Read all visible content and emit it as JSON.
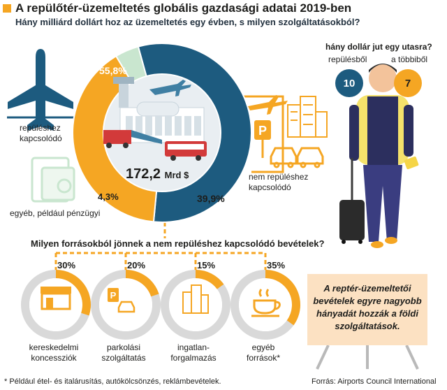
{
  "title": "A repülőtér-üzemeltetés globális gazdasági adatai 2019-ben",
  "subtitle": "Hány milliárd dollárt hoz az üzemeltetés egy évben, s milyen szolgáltatásokból?",
  "chart_data": [
    {
      "type": "pie",
      "title": "Hány milliárd dollárt hoz az üzemeltetés egy évben, s milyen szolgáltatásokból?",
      "center_value": "172,2",
      "center_unit": "Mrd $",
      "slices": [
        {
          "label": "repüléshez kapcsolódó",
          "value": 55.8,
          "value_label": "55,8%",
          "color": "#1d5b7f"
        },
        {
          "label": "nem repüléshez kapcsolódó",
          "value": 39.9,
          "value_label": "39,9%",
          "color": "#f5a623"
        },
        {
          "label": "egyéb, például pénzügyi",
          "value": 4.3,
          "value_label": "4,3%",
          "color": "#c9e6cf"
        }
      ]
    },
    {
      "type": "pie",
      "title": "Milyen forrásokból jönnek a nem repüléshez kapcsolódó bevételek?",
      "slices": [
        {
          "label": "kereskedelmi koncessziók",
          "value": 30,
          "value_label": "30%"
        },
        {
          "label": "parkolási szolgáltatás",
          "value": 20,
          "value_label": "20%"
        },
        {
          "label": "ingatlan-forgalmazás",
          "value": 15,
          "value_label": "15%"
        },
        {
          "label": "egyéb források*",
          "value": 35,
          "value_label": "35%"
        }
      ]
    }
  ],
  "labels": {
    "aviation_line1": "repüléshez",
    "aviation_line2": "kapcsolódó",
    "non_aviation_line1": "nem repüléshez",
    "non_aviation_line2": "kapcsolódó",
    "other": "egyéb, például pénzügyi"
  },
  "question2": "Milyen forrásokból jönnek a nem    repüléshez kapcsolódó bevételek?",
  "sub_charts": [
    {
      "pct": "30%",
      "line1": "kereskedelmi",
      "line2": "koncessziók"
    },
    {
      "pct": "20%",
      "line1": "parkolási",
      "line2": "szolgáltatás"
    },
    {
      "pct": "15%",
      "line1": "ingatlan-",
      "line2": "forgalmazás"
    },
    {
      "pct": "35%",
      "line1": "egyéb",
      "line2": "források*"
    }
  ],
  "passenger": {
    "question": "hány dollár jut egy utasra?",
    "aviation_label": "repülésből",
    "aviation_value": "10",
    "other_label": "a többiből",
    "other_value": "7"
  },
  "callout": "A reptér-üzemeltetői bevételek egyre nagyobb hányadát hozzák a földi szolgáltatások.",
  "footnote": "* Például étel- és italárusítás, autókölcsönzés, reklámbevételek.",
  "source": "Forrás: Airports Council International",
  "colors": {
    "aviation": "#1d5b7f",
    "non_aviation": "#f5a623",
    "other": "#c9e6cf",
    "ring_grey": "#d9d9d9",
    "callout_bg": "#fce1c2"
  },
  "icons": [
    "airplane-icon",
    "plane-takeoff-icon",
    "money-icon",
    "airport-terminal-icon",
    "bus-icon",
    "parking-icon",
    "car-icon",
    "building-icon",
    "shop-icon",
    "coffee-cup-icon",
    "traveler-icon",
    "suitcase-icon"
  ]
}
